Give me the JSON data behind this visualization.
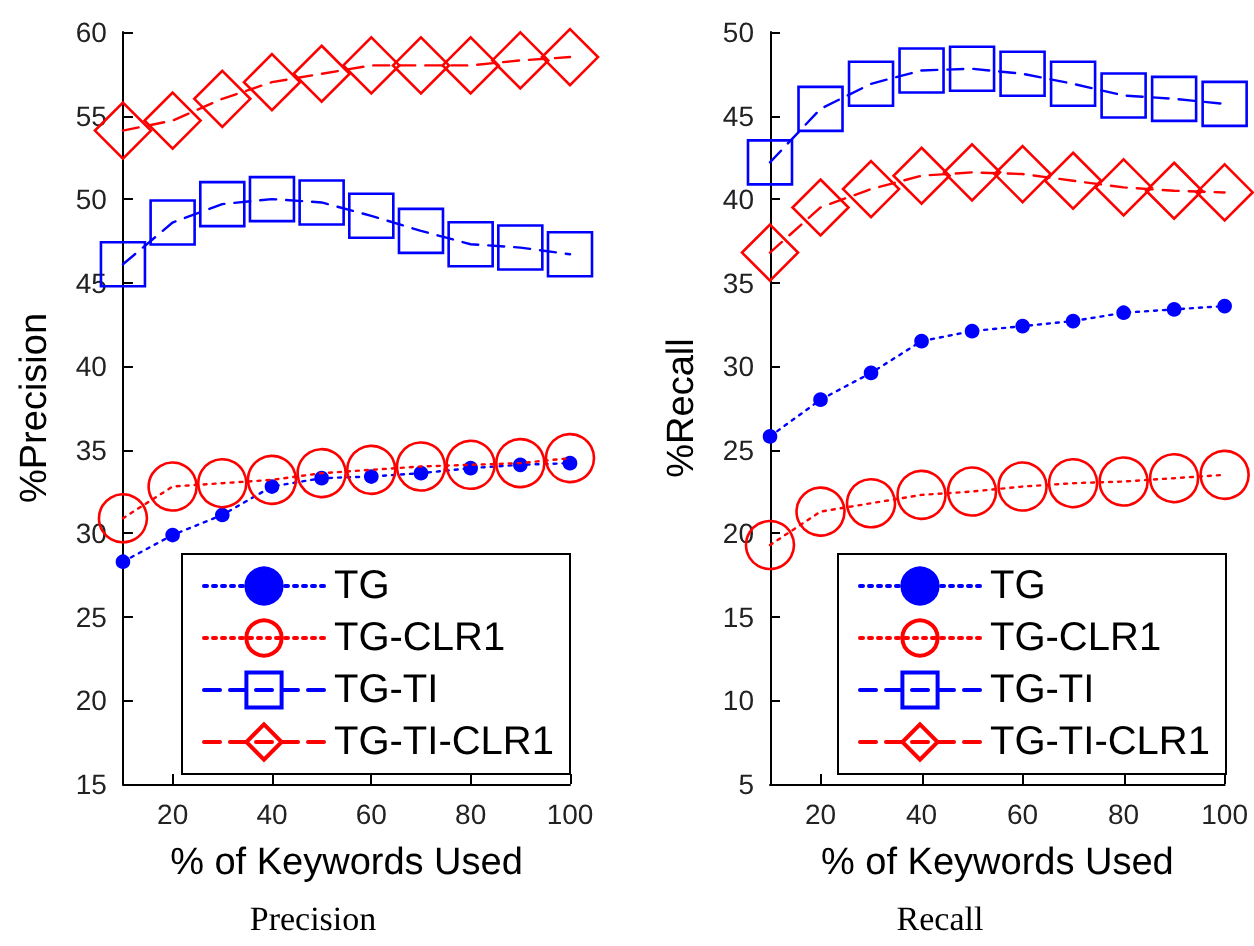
{
  "chart_data": [
    {
      "type": "line",
      "title": "Precision",
      "xlabel": "% of Keywords Used",
      "ylabel": "%Precision",
      "x": [
        10,
        20,
        30,
        40,
        50,
        60,
        70,
        80,
        90,
        100
      ],
      "xlim": [
        10,
        100
      ],
      "xticks": [
        20,
        40,
        60,
        80,
        100
      ],
      "ylim": [
        15,
        60
      ],
      "yticks": [
        15,
        20,
        25,
        30,
        35,
        40,
        45,
        50,
        55,
        60
      ],
      "grid": false,
      "legend": "bottom right",
      "series": [
        {
          "name": "TG",
          "color": "#0000ff",
          "marker": "circle",
          "line_style": "dotted",
          "values": [
            28.3,
            29.9,
            31.1,
            32.8,
            33.3,
            33.4,
            33.6,
            33.9,
            34.1,
            34.2
          ]
        },
        {
          "name": "TG-CLR1",
          "color": "#ff0000",
          "marker": "circle",
          "line_style": "dotted",
          "values": [
            30.9,
            32.8,
            33.0,
            33.2,
            33.6,
            33.8,
            34.0,
            34.1,
            34.2,
            34.5
          ]
        },
        {
          "name": "TG-TI",
          "color": "#0000ff",
          "marker": "square",
          "line_style": "dashed",
          "values": [
            46.1,
            48.6,
            49.7,
            50.0,
            49.8,
            49.0,
            48.1,
            47.3,
            47.1,
            46.7
          ]
        },
        {
          "name": "TG-TI-CLR1",
          "color": "#ff0000",
          "marker": "diamond",
          "line_style": "dashed",
          "values": [
            54.1,
            54.7,
            56.0,
            57.0,
            57.5,
            58.0,
            58.0,
            58.0,
            58.3,
            58.5
          ]
        }
      ]
    },
    {
      "type": "line",
      "title": "Recall",
      "xlabel": "% of Keywords Used",
      "ylabel": "%Recall",
      "x": [
        10,
        20,
        30,
        40,
        50,
        60,
        70,
        80,
        90,
        100
      ],
      "xlim": [
        10,
        100
      ],
      "xticks": [
        20,
        40,
        60,
        80,
        100
      ],
      "ylim": [
        5,
        50
      ],
      "yticks": [
        5,
        10,
        15,
        20,
        25,
        30,
        35,
        40,
        45,
        50
      ],
      "grid": false,
      "legend": "bottom right",
      "series": [
        {
          "name": "TG",
          "color": "#0000ff",
          "marker": "circle",
          "line_style": "dotted",
          "values": [
            25.8,
            28.0,
            29.6,
            31.5,
            32.1,
            32.4,
            32.7,
            33.2,
            33.4,
            33.6
          ]
        },
        {
          "name": "TG-CLR1",
          "color": "#ff0000",
          "marker": "circle",
          "line_style": "dotted",
          "values": [
            19.3,
            21.3,
            21.8,
            22.3,
            22.5,
            22.8,
            23.0,
            23.1,
            23.3,
            23.5
          ]
        },
        {
          "name": "TG-TI",
          "color": "#0000ff",
          "marker": "square",
          "line_style": "dashed",
          "values": [
            42.2,
            45.4,
            46.9,
            47.7,
            47.8,
            47.5,
            46.9,
            46.2,
            46.0,
            45.7
          ]
        },
        {
          "name": "TG-TI-CLR1",
          "color": "#ff0000",
          "marker": "diamond",
          "line_style": "dashed",
          "values": [
            36.8,
            39.5,
            40.6,
            41.4,
            41.6,
            41.5,
            41.1,
            40.7,
            40.5,
            40.4
          ]
        }
      ]
    }
  ]
}
